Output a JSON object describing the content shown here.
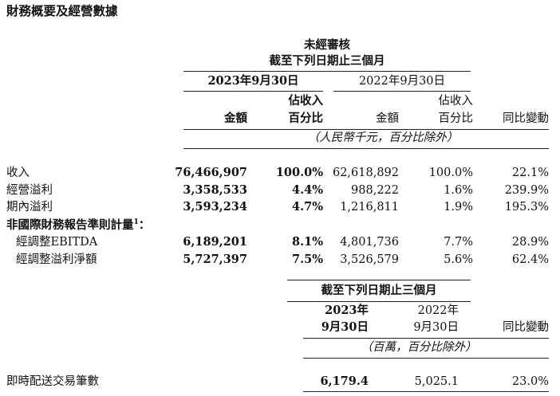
{
  "title": "財務概要及經營數據",
  "table1": {
    "header_unaudited": "未經審核",
    "header_period": "截至下列日期止三個月",
    "col_2023": "2023年9月30日",
    "col_2022": "2022年9月30日",
    "col_amount_2023": "金額",
    "col_pct_2023_line1": "佔收入",
    "col_pct_2023_line2": "百分比",
    "col_amount_2022": "金額",
    "col_pct_2022_line1": "佔收入",
    "col_pct_2022_line2": "百分比",
    "col_yoy": "同比變動",
    "unit_note": "（人民幣千元，百分比除外）",
    "rows": [
      {
        "label": "收入",
        "amt2023": "76,466,907",
        "pct2023": "100.0%",
        "amt2022": "62,618,892",
        "pct2022": "100.0%",
        "yoy": "22.1%"
      },
      {
        "label": "經營溢利",
        "amt2023": "3,358,533",
        "pct2023": "4.4%",
        "amt2022": "988,222",
        "pct2022": "1.6%",
        "yoy": "239.9%"
      },
      {
        "label": "期內溢利",
        "amt2023": "3,593,234",
        "pct2023": "4.7%",
        "amt2022": "1,216,811",
        "pct2022": "1.9%",
        "yoy": "195.3%"
      }
    ],
    "section_nonifrs": "非國際財務報告準則計量",
    "section_nonifrs_sup": "1",
    "section_nonifrs_colon": "：",
    "nonifrs_rows": [
      {
        "label": "經調整EBITDA",
        "amt2023": "6,189,201",
        "pct2023": "8.1%",
        "amt2022": "4,801,736",
        "pct2022": "7.7%",
        "yoy": "28.9%"
      },
      {
        "label": "經調整溢利淨額",
        "amt2023": "5,727,397",
        "pct2023": "7.5%",
        "amt2022": "3,526,579",
        "pct2022": "5.6%",
        "yoy": "62.4%"
      }
    ]
  },
  "table2": {
    "header_period": "截至下列日期止三個月",
    "col_2023_line1": "2023年",
    "col_2023_line2": "9月30日",
    "col_2022_line1": "2022年",
    "col_2022_line2": "9月30日",
    "col_yoy": "同比變動",
    "unit_note": "（百萬，百分比除外）",
    "row": {
      "label": "即時配送交易筆數",
      "v2023": "6,179.4",
      "v2022": "5,025.1",
      "yoy": "23.0%"
    }
  }
}
